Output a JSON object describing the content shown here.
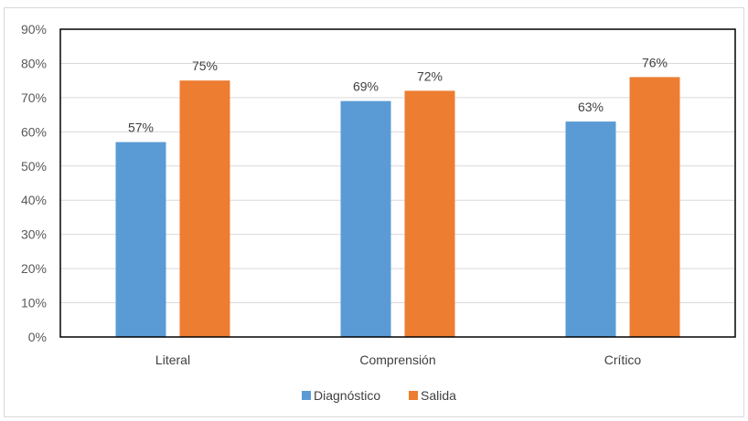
{
  "chart_data": {
    "type": "bar",
    "categories": [
      "Literal",
      "Comprensión",
      "Crítico"
    ],
    "series": [
      {
        "name": "Diagnóstico",
        "values": [
          57,
          69,
          63
        ],
        "labels": [
          "57%",
          "69%",
          "63%"
        ],
        "color": "#5b9bd5"
      },
      {
        "name": "Salida",
        "values": [
          75,
          72,
          76
        ],
        "labels": [
          "75%",
          "72%",
          "76%"
        ],
        "color": "#ed7d31"
      }
    ],
    "yticks": [
      "0%",
      "10%",
      "20%",
      "30%",
      "40%",
      "50%",
      "60%",
      "70%",
      "80%",
      "90%"
    ],
    "ylim": [
      0,
      90
    ],
    "title": "",
    "xlabel": "",
    "ylabel": "",
    "grid": true,
    "legend_position": "bottom",
    "gridline_color": "#d9d9d9",
    "plot_border_color": "#000000"
  }
}
